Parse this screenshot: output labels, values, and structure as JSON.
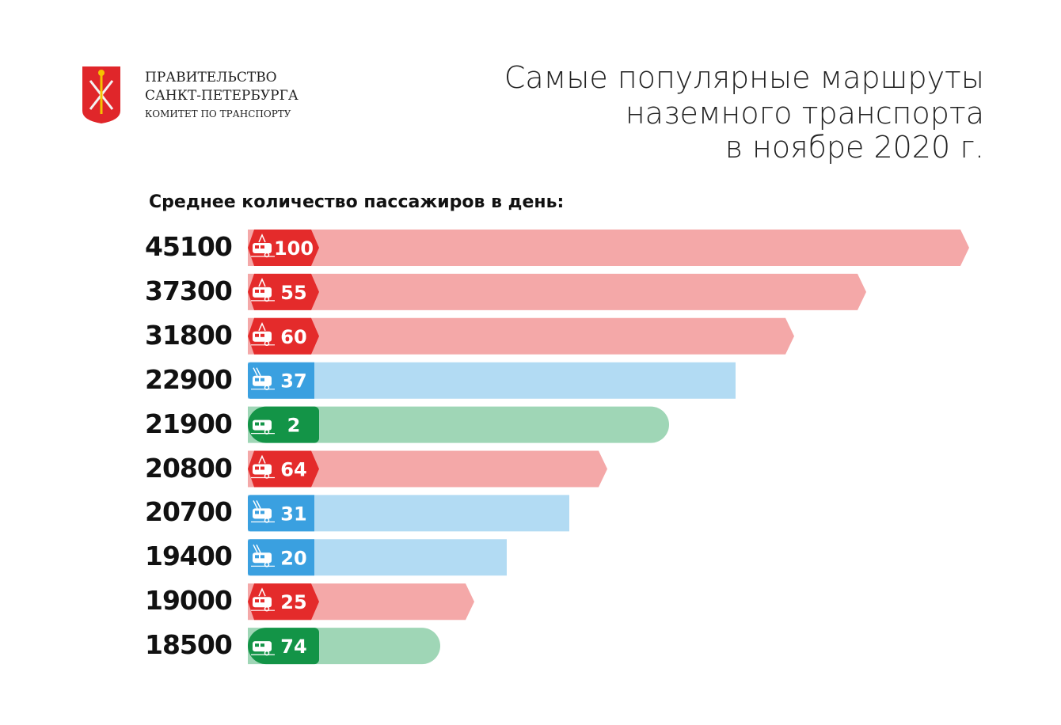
{
  "org": {
    "line1": "ПРАВИТЕЛЬСТВО",
    "line2": "САНКТ-ПЕТЕРБУРГА",
    "line3": "КОМИТЕТ ПО ТРАНСПОРТУ"
  },
  "colors": {
    "tram": {
      "badge": "#e42b2b",
      "bar": "#f4a8a8"
    },
    "trolleybus": {
      "badge": "#3aa0e0",
      "bar": "#b2dbf3"
    },
    "bus": {
      "badge": "#139447",
      "bar": "#9fd6b6"
    }
  },
  "chart_data": {
    "type": "bar",
    "title": [
      "Самые популярные маршруты",
      "наземного транспорта",
      "в ноябре 2020 г."
    ],
    "subtitle": "Среднее количество пассажиров в день:",
    "orientation": "horizontal",
    "rows": [
      {
        "value": "45100",
        "route": "100",
        "mode": "tram"
      },
      {
        "value": "37300",
        "route": "55",
        "mode": "tram"
      },
      {
        "value": "31800",
        "route": "60",
        "mode": "tram"
      },
      {
        "value": "22900",
        "route": "37",
        "mode": "trolleybus"
      },
      {
        "value": "21900",
        "route": "2",
        "mode": "bus"
      },
      {
        "value": "20800",
        "route": "64",
        "mode": "tram"
      },
      {
        "value": "20700",
        "route": "31",
        "mode": "trolleybus"
      },
      {
        "value": "19400",
        "route": "20",
        "mode": "trolleybus"
      },
      {
        "value": "19000",
        "route": "25",
        "mode": "tram"
      },
      {
        "value": "18500",
        "route": "74",
        "mode": "bus"
      }
    ]
  }
}
